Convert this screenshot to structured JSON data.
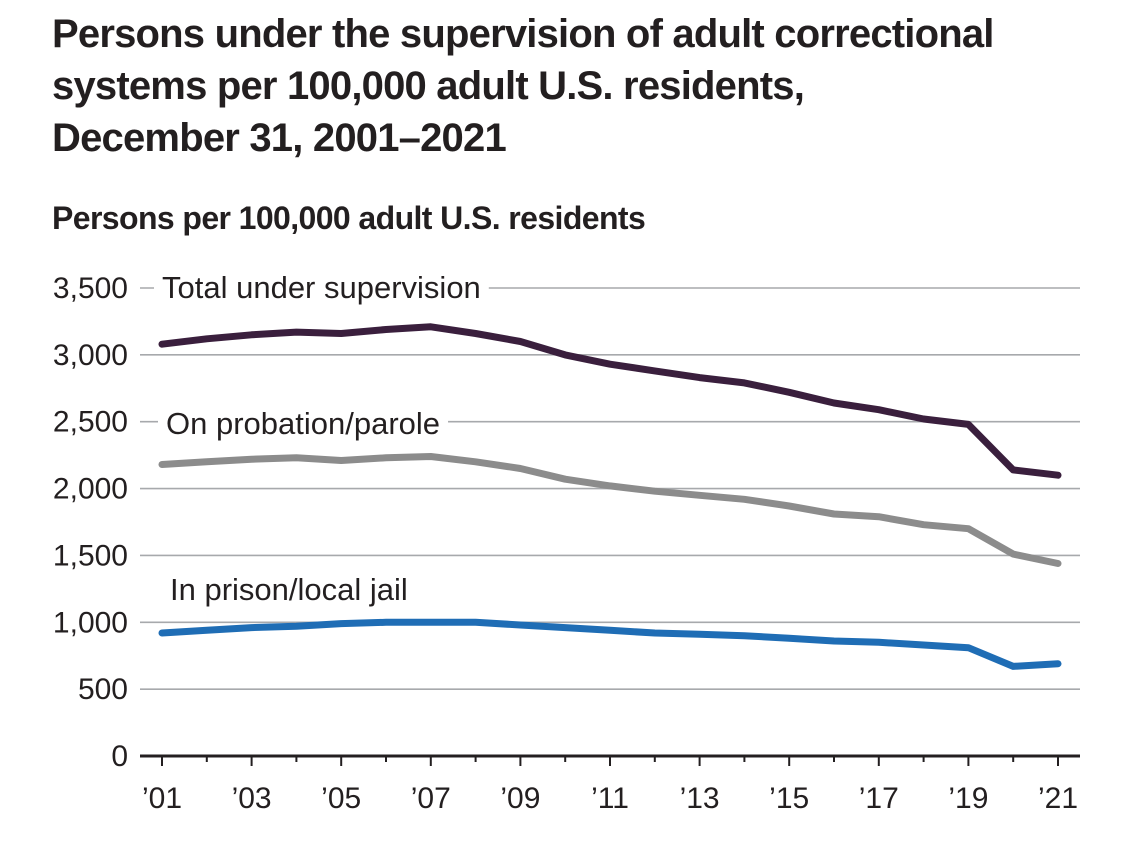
{
  "chart_data": {
    "type": "line",
    "title_lines": [
      "Persons under the supervision of adult correctional",
      "systems per 100,000 adult U.S. residents,",
      "December 31, 2001–2021"
    ],
    "ylabel": "Persons per 100,000 adult U.S. residents",
    "xlabel": "",
    "ylim": [
      0,
      3500
    ],
    "yticks": [
      0,
      500,
      1000,
      1500,
      2000,
      2500,
      3000,
      3500
    ],
    "ytick_labels": [
      "0",
      "500",
      "1,000",
      "1,500",
      "2,000",
      "2,500",
      "3,000",
      "3,500"
    ],
    "x": [
      2001,
      2002,
      2003,
      2004,
      2005,
      2006,
      2007,
      2008,
      2009,
      2010,
      2011,
      2012,
      2013,
      2014,
      2015,
      2016,
      2017,
      2018,
      2019,
      2020,
      2021
    ],
    "xticks": [
      2001,
      2003,
      2005,
      2007,
      2009,
      2011,
      2013,
      2015,
      2017,
      2019,
      2021
    ],
    "xtick_labels": [
      "’01",
      "’03",
      "’05",
      "’07",
      "’09",
      "’11",
      "’13",
      "’15",
      "’17",
      "’19",
      "’21"
    ],
    "grid": true,
    "series": [
      {
        "name": "Total under supervision",
        "color": "#3a1f3d",
        "values": [
          3080,
          3120,
          3150,
          3170,
          3160,
          3190,
          3210,
          3160,
          3100,
          3000,
          2930,
          2880,
          2830,
          2790,
          2720,
          2640,
          2590,
          2520,
          2480,
          2140,
          2100
        ]
      },
      {
        "name": "On probation/parole",
        "color": "#8c8c8c",
        "values": [
          2180,
          2200,
          2220,
          2230,
          2210,
          2230,
          2240,
          2200,
          2150,
          2070,
          2020,
          1980,
          1950,
          1920,
          1870,
          1810,
          1790,
          1730,
          1700,
          1510,
          1440
        ]
      },
      {
        "name": "In prison/local jail",
        "color": "#1f6db5",
        "values": [
          920,
          940,
          960,
          970,
          990,
          1000,
          1000,
          1000,
          980,
          960,
          940,
          920,
          910,
          900,
          880,
          860,
          850,
          830,
          810,
          670,
          690
        ]
      }
    ]
  }
}
